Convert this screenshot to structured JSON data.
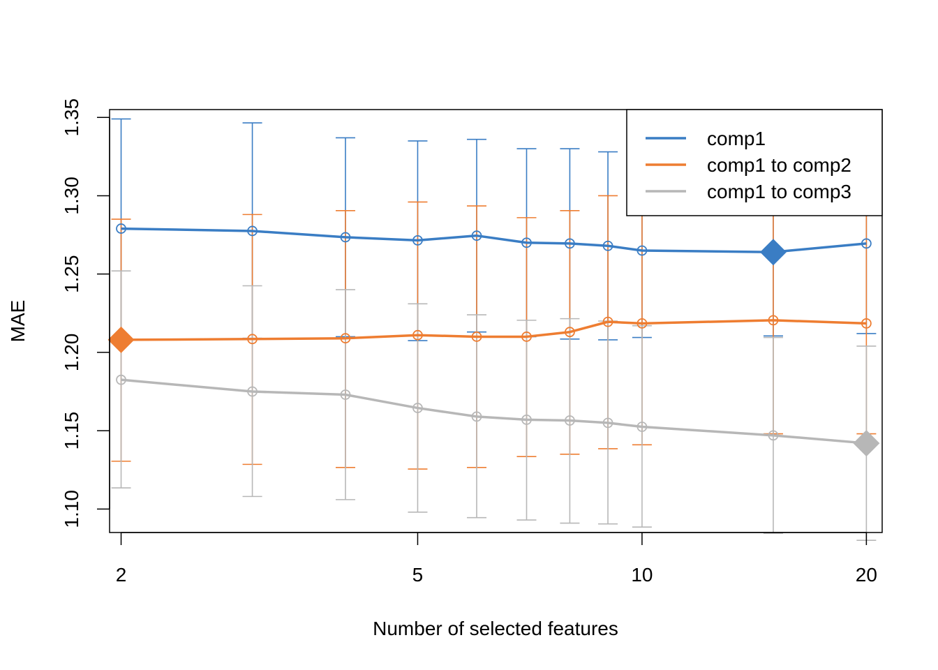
{
  "chart_data": {
    "type": "line",
    "title": "",
    "xlabel": "Number of selected features",
    "ylabel": "MAE",
    "x_scale": "log",
    "x": [
      2,
      3,
      4,
      5,
      6,
      7,
      8,
      9,
      10,
      15,
      20
    ],
    "xlim": [
      1.93,
      21.0
    ],
    "ylim": [
      1.085,
      1.355
    ],
    "x_ticks": [
      2,
      5,
      10,
      20
    ],
    "x_tick_labels": [
      "2",
      "5",
      "10",
      "20"
    ],
    "y_ticks": [
      1.1,
      1.15,
      1.2,
      1.25,
      1.3,
      1.35
    ],
    "y_tick_labels": [
      "1.10",
      "1.15",
      "1.20",
      "1.25",
      "1.30",
      "1.35"
    ],
    "grid": false,
    "legend_position": "top-right",
    "series": [
      {
        "name": "comp1",
        "color": "#3a7dc4",
        "values": [
          1.279,
          1.2775,
          1.2735,
          1.2715,
          1.2745,
          1.27,
          1.2695,
          1.268,
          1.265,
          1.264,
          1.2695
        ],
        "err_upper": [
          1.349,
          1.3465,
          1.337,
          1.335,
          1.336,
          1.33,
          1.33,
          1.328,
          1.325,
          1.32,
          1.327
        ],
        "err_lower": [
          1.209,
          1.209,
          1.21,
          1.2075,
          1.213,
          1.21,
          1.2085,
          1.208,
          1.2095,
          1.2105,
          1.212
        ],
        "optimum_x": 15
      },
      {
        "name": "comp1 to comp2",
        "color": "#ee7d31",
        "values": [
          1.208,
          1.2085,
          1.209,
          1.211,
          1.21,
          1.21,
          1.213,
          1.2195,
          1.2185,
          1.2205,
          1.2185
        ],
        "err_upper": [
          1.285,
          1.288,
          1.2905,
          1.296,
          1.2935,
          1.286,
          1.2905,
          1.3,
          1.296,
          1.292,
          1.29
        ],
        "err_lower": [
          1.1305,
          1.1285,
          1.1265,
          1.1255,
          1.1265,
          1.1335,
          1.135,
          1.1385,
          1.141,
          1.148,
          1.148
        ],
        "optimum_x": 2
      },
      {
        "name": "comp1 to comp3",
        "color": "#b7b7b7",
        "values": [
          1.1825,
          1.175,
          1.173,
          1.1645,
          1.159,
          1.157,
          1.1565,
          1.155,
          1.1525,
          1.147,
          1.142
        ],
        "err_upper": [
          1.252,
          1.2425,
          1.24,
          1.231,
          1.224,
          1.2205,
          1.2215,
          1.22,
          1.217,
          1.2095,
          1.204
        ],
        "err_lower": [
          1.1135,
          1.108,
          1.106,
          1.098,
          1.0945,
          1.093,
          1.091,
          1.0905,
          1.0885,
          1.0845,
          1.08
        ],
        "optimum_x": 20
      }
    ]
  }
}
